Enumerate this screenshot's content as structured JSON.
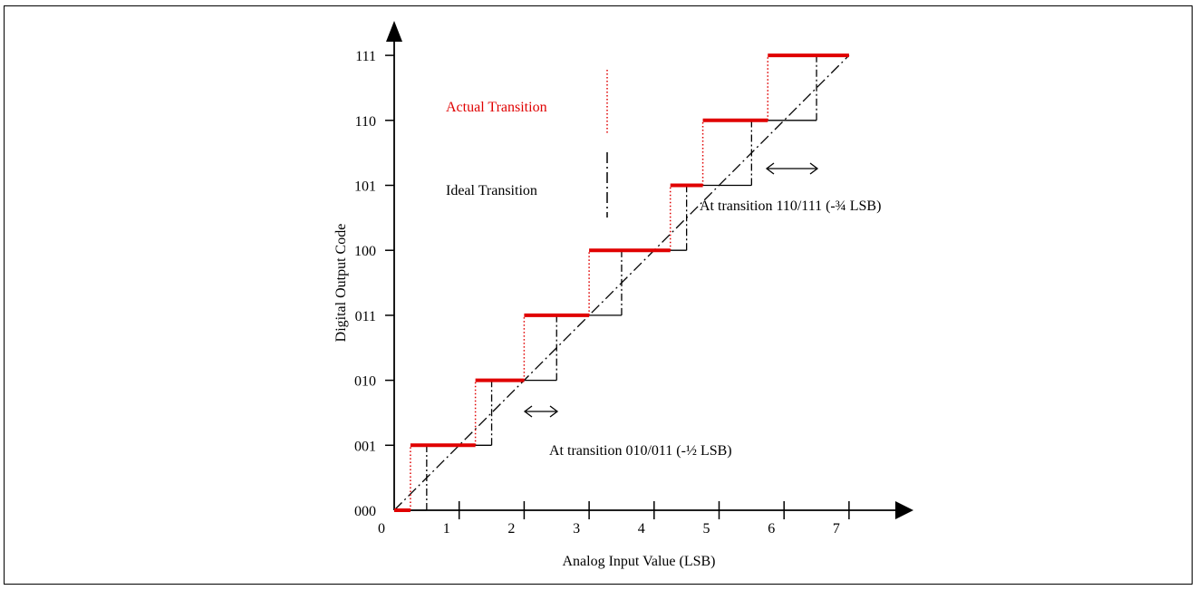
{
  "diagram": {
    "x_axis_label": "Analog Input Value (LSB)",
    "y_axis_label": "Digital Output Code",
    "x_ticks": [
      "0",
      "1",
      "2",
      "3",
      "4",
      "5",
      "6",
      "7"
    ],
    "y_ticks": [
      "000",
      "001",
      "010",
      "011",
      "100",
      "101",
      "110",
      "111"
    ],
    "legend": [
      {
        "label": "Actual Transition",
        "color": "#e00000",
        "style": "dotted"
      },
      {
        "label": "Ideal Transition",
        "color": "#000000",
        "style": "dash-dot"
      }
    ],
    "annotations": [
      {
        "text": "At transition 010/011 (-½ LSB)"
      },
      {
        "text": "At transition 110/111 (-¾ LSB)"
      }
    ],
    "ideal_transitions_lsb": [
      0.5,
      1.5,
      2.5,
      3.5,
      4.5,
      5.5,
      6.5
    ],
    "actual_transitions_lsb": [
      0.25,
      1.25,
      2.0,
      3.0,
      4.25,
      4.75,
      5.75
    ],
    "colors": {
      "actual": "#e00000",
      "ideal": "#000000"
    }
  }
}
